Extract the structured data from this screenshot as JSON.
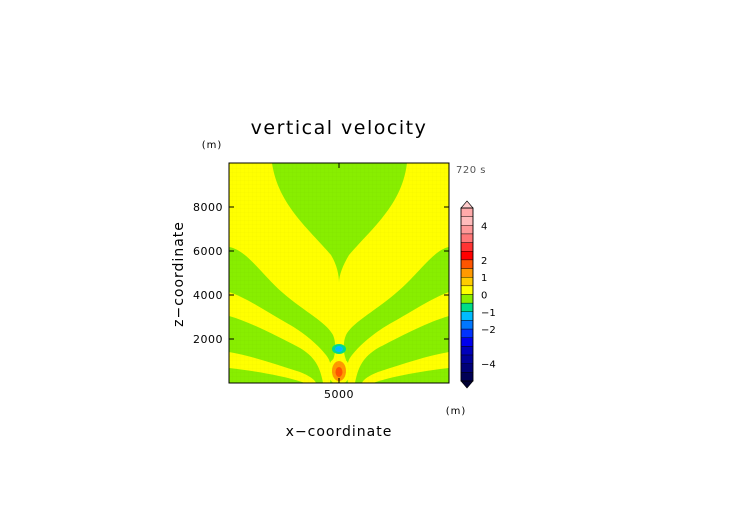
{
  "chart_data": {
    "type": "heatmap",
    "title": "vertical velocity",
    "xlabel": "x−coordinate",
    "ylabel": "z−coordinate",
    "x_unit": "(m)",
    "y_unit": "(m)",
    "time_label": "720 s",
    "xlim": [
      0,
      10000
    ],
    "ylim": [
      0,
      10000
    ],
    "x_ticks": [
      {
        "value": 5000,
        "label": "5000"
      }
    ],
    "y_ticks": [
      {
        "value": 2000,
        "label": "2000"
      },
      {
        "value": 4000,
        "label": "4000"
      },
      {
        "value": 6000,
        "label": "6000"
      },
      {
        "value": 8000,
        "label": "8000"
      }
    ],
    "field": {
      "description_values": "w approx: 0 to 0.5 (yellow) background; -0.5 to 0 (green) plume; updraft core up to ~1.5 near x=5000 z=700; downdraft ~-1 near x=5000 z=1600",
      "updraft_core": {
        "x": 5000,
        "z": 700,
        "w": 1.5
      },
      "downdraft_core": {
        "x": 5000,
        "z": 1600,
        "w": -1
      }
    },
    "colorbar": {
      "levels": [
        {
          "lo": 4.5,
          "hi": 5.0,
          "color": "#ffaaaa"
        },
        {
          "lo": 4.0,
          "hi": 4.5,
          "color": "#ffbbbb"
        },
        {
          "lo": 3.5,
          "hi": 4.0,
          "color": "#ff9999"
        },
        {
          "lo": 3.0,
          "hi": 3.5,
          "color": "#ff7777"
        },
        {
          "lo": 2.5,
          "hi": 3.0,
          "color": "#ff3333"
        },
        {
          "lo": 2.0,
          "hi": 2.5,
          "color": "#ff0000"
        },
        {
          "lo": 1.5,
          "hi": 2.0,
          "color": "#ff5500"
        },
        {
          "lo": 1.0,
          "hi": 1.5,
          "color": "#ff9900"
        },
        {
          "lo": 0.5,
          "hi": 1.0,
          "color": "#ffcc00"
        },
        {
          "lo": 0.0,
          "hi": 0.5,
          "color": "#ffff00"
        },
        {
          "lo": -0.5,
          "hi": 0.0,
          "color": "#88ee00"
        },
        {
          "lo": -1.0,
          "hi": -0.5,
          "color": "#00dd88"
        },
        {
          "lo": -1.5,
          "hi": -1.0,
          "color": "#00bbff"
        },
        {
          "lo": -2.0,
          "hi": -1.5,
          "color": "#0077ff"
        },
        {
          "lo": -2.5,
          "hi": -2.0,
          "color": "#0033ff"
        },
        {
          "lo": -3.0,
          "hi": -2.5,
          "color": "#0000ee"
        },
        {
          "lo": -3.5,
          "hi": -3.0,
          "color": "#0000bb"
        },
        {
          "lo": -4.0,
          "hi": -3.5,
          "color": "#000099"
        },
        {
          "lo": -4.5,
          "hi": -4.0,
          "color": "#000077"
        },
        {
          "lo": -5.0,
          "hi": -4.5,
          "color": "#000055"
        }
      ],
      "ticks": [
        {
          "value": 4,
          "label": "4"
        },
        {
          "value": 2,
          "label": "2"
        },
        {
          "value": 1,
          "label": "1"
        },
        {
          "value": 0,
          "label": "0"
        },
        {
          "value": -1,
          "label": "−1"
        },
        {
          "value": -2,
          "label": "−2"
        },
        {
          "value": -4,
          "label": "−4"
        }
      ],
      "top_arrow_color": "#ffcccc",
      "bottom_arrow_color": "#000033"
    },
    "colors": {
      "positive_small": "#ffff00",
      "negative_small": "#88ee00",
      "updraft": "#ff9900",
      "updraft_core": "#ff5500",
      "downdraft": "#00dd88",
      "downdraft_core": "#00bbff"
    }
  }
}
